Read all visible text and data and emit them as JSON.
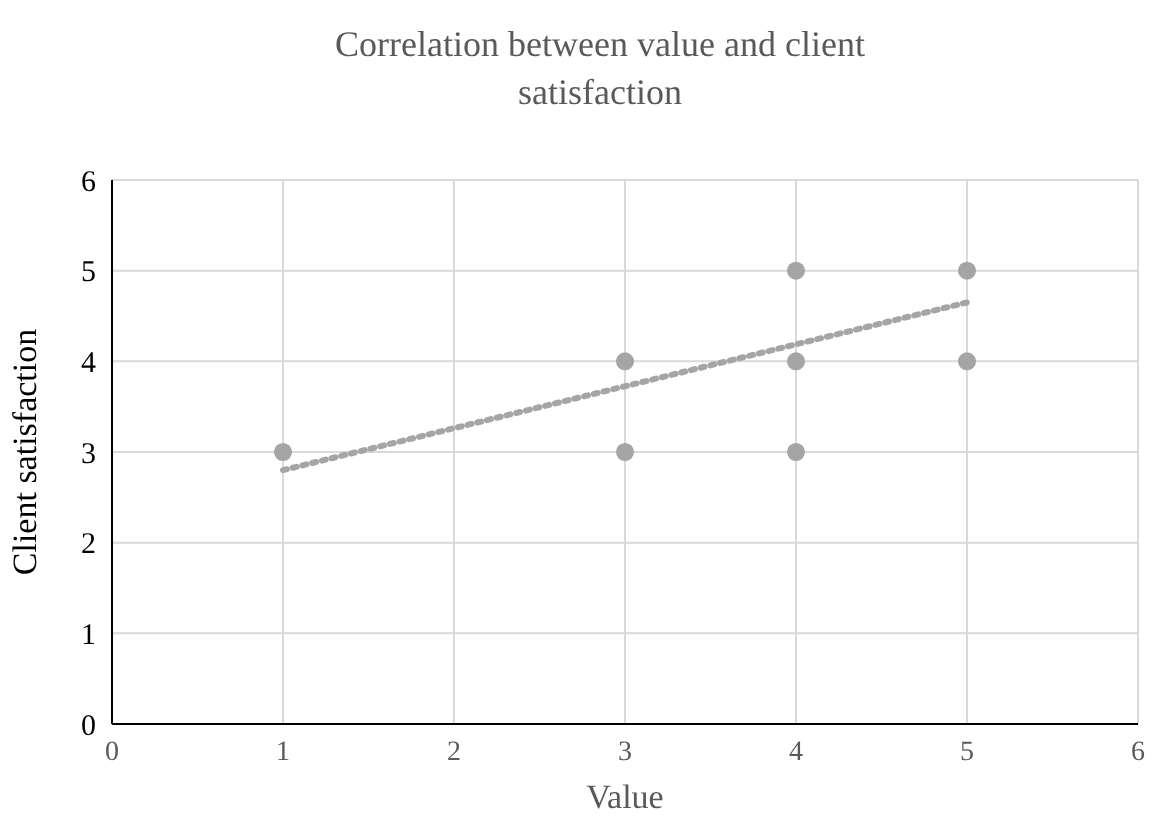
{
  "chart_data": {
    "type": "scatter",
    "title": "Correlation between value and client satisfaction",
    "xlabel": "Value",
    "ylabel": "Client  satisfaction",
    "series": [
      {
        "color": "#a5a5a5",
        "x": [
          1,
          3,
          3,
          4,
          4,
          4,
          5,
          5
        ],
        "values": [
          3,
          4,
          3,
          5,
          4,
          3,
          5,
          4
        ],
        "marker": "circle"
      },
      {
        "type": "line",
        "color": "#a5a5a5",
        "x": [
          1,
          5
        ],
        "values": [
          2.8,
          4.65
        ],
        "line_style": "dotted",
        "marker": "none"
      }
    ],
    "xlim": [
      0,
      6
    ],
    "xticks": [
      0,
      1,
      2,
      3,
      4,
      5,
      6
    ],
    "ylim": [
      0,
      6
    ],
    "yticks": [
      0,
      1,
      2,
      3,
      4,
      5,
      6
    ],
    "grid": true,
    "legend": false
  }
}
